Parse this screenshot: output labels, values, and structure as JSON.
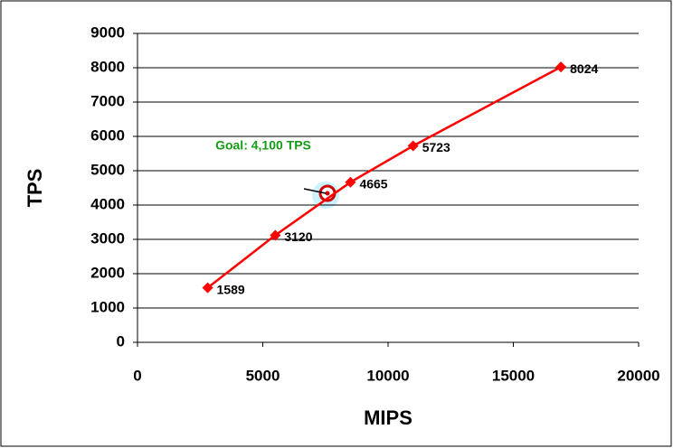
{
  "chart_data": {
    "type": "line",
    "x_label": "MIPS",
    "y_label": "TPS",
    "annotation": "Goal:  4,100 TPS",
    "series": [
      {
        "color": "#ff0000",
        "x": [
          2800,
          5500,
          8500,
          11000,
          16900
        ],
        "values": [
          1589,
          3120,
          4665,
          5723,
          8024
        ]
      }
    ],
    "xlim": [
      0,
      20000
    ],
    "xticks": [
      0,
      5000,
      10000,
      15000,
      20000
    ],
    "ylim": [
      0,
      9000
    ],
    "yticks": [
      0,
      1000,
      2000,
      3000,
      4000,
      5000,
      6000,
      7000,
      8000,
      9000
    ],
    "grid": true
  }
}
